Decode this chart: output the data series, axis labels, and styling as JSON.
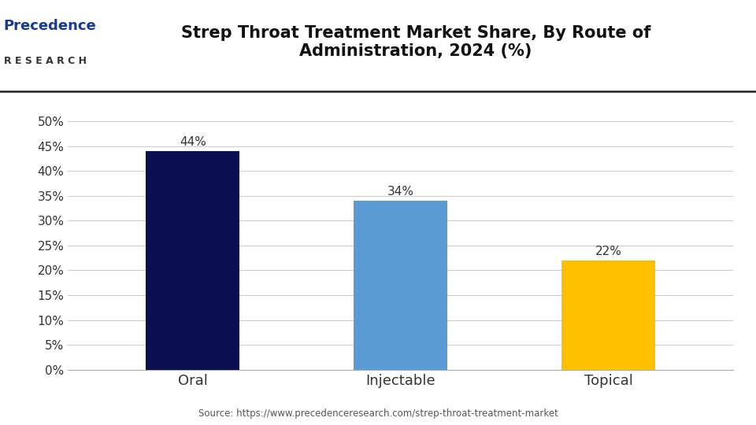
{
  "title": "Strep Throat Treatment Market Share, By Route of\nAdministration, 2024 (%)",
  "categories": [
    "Oral",
    "Injectable",
    "Topical"
  ],
  "values": [
    44,
    34,
    22
  ],
  "bar_colors": [
    "#0a0f4f",
    "#5b9bd5",
    "#ffc000"
  ],
  "bar_labels": [
    "44%",
    "34%",
    "22%"
  ],
  "yticks": [
    0,
    5,
    10,
    15,
    20,
    25,
    30,
    35,
    40,
    45,
    50
  ],
  "ytick_labels": [
    "0%",
    "5%",
    "10%",
    "15%",
    "20%",
    "25%",
    "30%",
    "35%",
    "40%",
    "45%",
    "50%"
  ],
  "ylim": [
    0,
    53
  ],
  "source_text": "Source: https://www.precedenceresearch.com/strep-throat-treatment-market",
  "background_color": "#ffffff",
  "grid_color": "#cccccc",
  "title_fontsize": 15,
  "label_fontsize": 13,
  "tick_fontsize": 11,
  "bar_label_fontsize": 11,
  "logo_precedence_color": "#1a3a8f",
  "logo_research_color": "#333333",
  "divider_color": "#222222",
  "source_fontsize": 8.5,
  "bar_width": 0.45
}
